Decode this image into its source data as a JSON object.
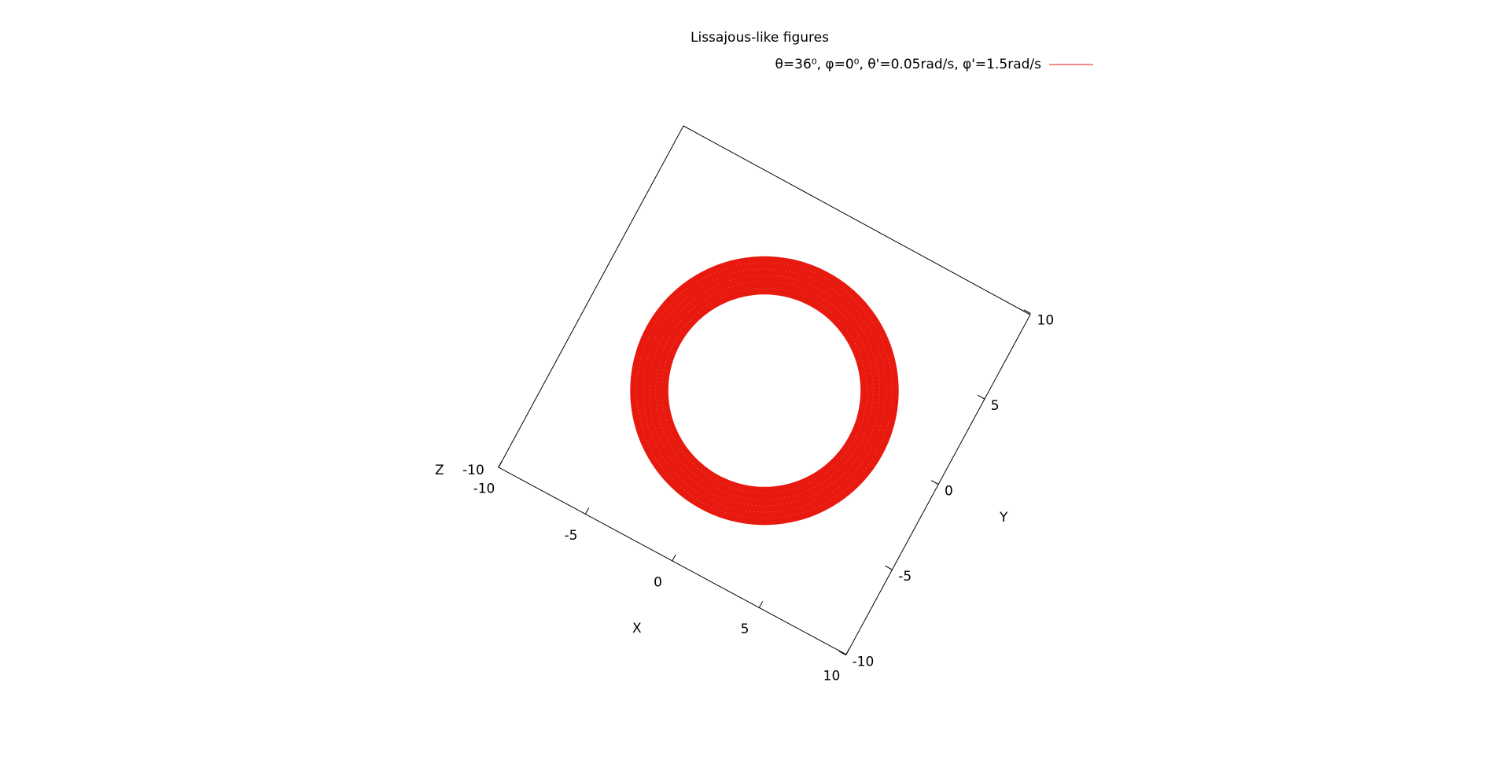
{
  "chart_data": {
    "type": "line",
    "title": "Lissajous-like figures",
    "series": [
      {
        "name": "θ=36⁰, φ=0⁰, θ'=0.05rad/s, φ'=1.5rad/s",
        "color": "#e8190f",
        "shape": "annulus",
        "center": [
          0,
          0
        ],
        "inner_radius": 6.3,
        "outer_radius": 8.8
      }
    ],
    "xlabel": "X",
    "ylabel": "Y",
    "zlabel": "Z",
    "xlim": [
      -10,
      10
    ],
    "ylim": [
      -10,
      10
    ],
    "x_ticks": [
      {
        "value": -10,
        "label": "-10"
      },
      {
        "value": -5,
        "label": "-5"
      },
      {
        "value": 0,
        "label": "0"
      },
      {
        "value": 5,
        "label": "5"
      },
      {
        "value": 10,
        "label": "10"
      }
    ],
    "y_ticks": [
      {
        "value": -10,
        "label": "-10"
      },
      {
        "value": -5,
        "label": "-5"
      },
      {
        "value": 0,
        "label": "0"
      },
      {
        "value": 5,
        "label": "5"
      },
      {
        "value": 10,
        "label": "10"
      }
    ],
    "z_tick_label": "-10",
    "legend_position": "top-right",
    "grid": false
  }
}
